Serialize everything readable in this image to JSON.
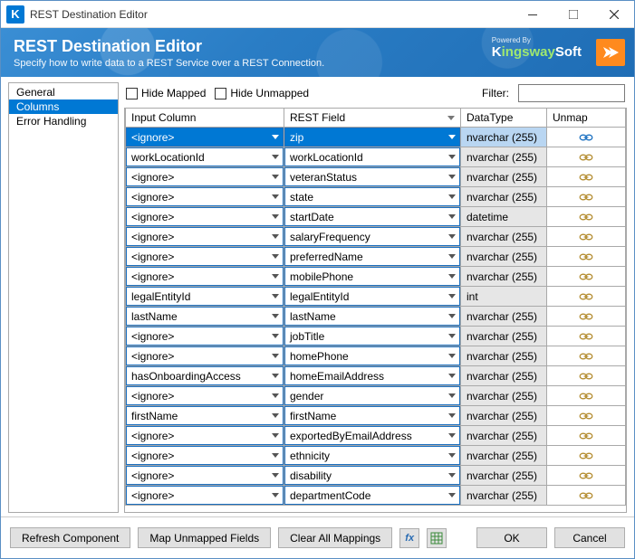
{
  "window": {
    "title": "REST Destination Editor",
    "icon_letter": "K"
  },
  "header": {
    "title": "REST Destination Editor",
    "subtitle": "Specify how to write data to a REST Service over a REST Connection.",
    "powered_by": "Powered By",
    "brand": "KingswaySoft",
    "brand_accent_color": "#9fe870",
    "band_bg": "#2a7dc5",
    "arrow_bg": "#ff8a1e"
  },
  "sidebar": {
    "items": [
      {
        "label": "General",
        "selected": false
      },
      {
        "label": "Columns",
        "selected": true
      },
      {
        "label": "Error Handling",
        "selected": false
      }
    ]
  },
  "toolbar": {
    "hide_mapped_label": "Hide Mapped",
    "hide_unmapped_label": "Hide Unmapped",
    "hide_mapped_checked": false,
    "hide_unmapped_checked": false,
    "filter_label": "Filter:",
    "filter_value": ""
  },
  "grid": {
    "columns": {
      "input": "Input Column",
      "rest": "REST Field",
      "datatype": "DataType",
      "unmap": "Unmap"
    },
    "sort_column": "rest",
    "col_widths": {
      "input": 175,
      "rest": 195,
      "datatype": 95,
      "unmap": 50
    },
    "combo_border_color": "#1a6fc0",
    "type_bg": "#e6e6e6",
    "selected_bg": "#0078d4",
    "selected_type_bg": "#b9d6f2",
    "rows": [
      {
        "input": "<ignore>",
        "rest": "zip",
        "type": "nvarchar (255)",
        "selected": true
      },
      {
        "input": "workLocationId",
        "rest": "workLocationId",
        "type": "nvarchar (255)"
      },
      {
        "input": "<ignore>",
        "rest": "veteranStatus",
        "type": "nvarchar (255)"
      },
      {
        "input": "<ignore>",
        "rest": "state",
        "type": "nvarchar (255)"
      },
      {
        "input": "<ignore>",
        "rest": "startDate",
        "type": "datetime"
      },
      {
        "input": "<ignore>",
        "rest": "salaryFrequency",
        "type": "nvarchar (255)"
      },
      {
        "input": "<ignore>",
        "rest": "preferredName",
        "type": "nvarchar (255)"
      },
      {
        "input": "<ignore>",
        "rest": "mobilePhone",
        "type": "nvarchar (255)"
      },
      {
        "input": "legalEntityId",
        "rest": "legalEntityId",
        "type": "int"
      },
      {
        "input": "lastName",
        "rest": "lastName",
        "type": "nvarchar (255)"
      },
      {
        "input": "<ignore>",
        "rest": "jobTitle",
        "type": "nvarchar (255)"
      },
      {
        "input": "<ignore>",
        "rest": "homePhone",
        "type": "nvarchar (255)"
      },
      {
        "input": "hasOnboardingAccess",
        "rest": "homeEmailAddress",
        "type": "nvarchar (255)"
      },
      {
        "input": "<ignore>",
        "rest": "gender",
        "type": "nvarchar (255)"
      },
      {
        "input": "firstName",
        "rest": "firstName",
        "type": "nvarchar (255)"
      },
      {
        "input": "<ignore>",
        "rest": "exportedByEmailAddress",
        "type": "nvarchar (255)"
      },
      {
        "input": "<ignore>",
        "rest": "ethnicity",
        "type": "nvarchar (255)"
      },
      {
        "input": "<ignore>",
        "rest": "disability",
        "type": "nvarchar (255)"
      },
      {
        "input": "<ignore>",
        "rest": "departmentCode",
        "type": "nvarchar (255)"
      }
    ]
  },
  "footer": {
    "refresh": "Refresh Component",
    "map_unmapped": "Map Unmapped Fields",
    "clear_all": "Clear All Mappings",
    "fx_label": "fx",
    "ok": "OK",
    "cancel": "Cancel"
  }
}
